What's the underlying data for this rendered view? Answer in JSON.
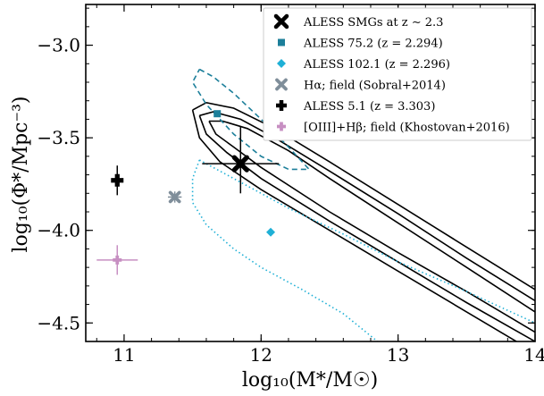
{
  "chart_data": {
    "type": "scatter",
    "xlabel": "log₁₀(M*/M☉)",
    "ylabel": "log₁₀(Φ*/Mpc⁻³)",
    "xlim": [
      10.72,
      14.0
    ],
    "ylim": [
      -4.6,
      -2.78
    ],
    "x_ticks": [
      11,
      12,
      13,
      14
    ],
    "y_ticks": [
      -3.0,
      -3.5,
      -4.0,
      -4.5
    ],
    "x_tick_labels": [
      "11",
      "12",
      "13",
      "14"
    ],
    "y_tick_labels": [
      "−3.0",
      "−3.5",
      "−4.0",
      "−4.5"
    ],
    "legend_position": "upper-right",
    "series": [
      {
        "name": "ALESS SMGs at z ∼ 2.3",
        "marker": "x",
        "color": "#000000",
        "points": [
          {
            "x": 11.85,
            "y": -3.64,
            "xerr": 0.28,
            "yerr": [
              0.2,
              0.16
            ]
          }
        ]
      },
      {
        "name": "ALESS 75.2 (z = 2.294)",
        "marker": "square",
        "color": "#1c7f9a",
        "points": [
          {
            "x": 11.68,
            "y": -3.37
          }
        ]
      },
      {
        "name": "ALESS 102.1 (z = 2.296)",
        "marker": "diamond",
        "color": "#1fb0d6",
        "points": [
          {
            "x": 12.07,
            "y": -4.01
          }
        ]
      },
      {
        "name": "Hα; field (Sobral+2014)",
        "marker": "x",
        "color": "#7f8e9a",
        "points": [
          {
            "x": 11.37,
            "y": -3.82,
            "xerr": 0.05,
            "yerr": 0.03
          }
        ]
      },
      {
        "name": "ALESS 5.1 (z = 3.303)",
        "marker": "plus",
        "color": "#000000",
        "points": [
          {
            "x": 10.95,
            "y": -3.73,
            "xerr": 0.03,
            "yerr": 0.08
          }
        ]
      },
      {
        "name": "[OIII]+Hβ; field (Khostovan+2016)",
        "marker": "plus",
        "color": "#c78fc2",
        "points": [
          {
            "x": 10.95,
            "y": -4.16,
            "xerr": 0.15,
            "yerr": 0.08
          }
        ]
      }
    ],
    "contours": [
      {
        "name": "ALESS SMGs contour 1",
        "style": "solid",
        "color": "#000000",
        "path": [
          [
            11.5,
            -3.35
          ],
          [
            11.6,
            -3.31
          ],
          [
            11.8,
            -3.34
          ],
          [
            12.1,
            -3.45
          ],
          [
            12.5,
            -3.63
          ],
          [
            13.0,
            -3.86
          ],
          [
            13.5,
            -4.09
          ],
          [
            14.0,
            -4.32
          ]
        ]
      },
      {
        "name": "ALESS SMGs contour 1 lower",
        "style": "solid",
        "color": "#000000",
        "path": [
          [
            11.5,
            -3.35
          ],
          [
            11.55,
            -3.5
          ],
          [
            11.7,
            -3.63
          ],
          [
            12.0,
            -3.78
          ],
          [
            12.5,
            -4.0
          ],
          [
            13.0,
            -4.22
          ],
          [
            13.5,
            -4.44
          ],
          [
            14.0,
            -4.66
          ]
        ]
      },
      {
        "name": "ALESS SMGs contour 2",
        "style": "solid",
        "color": "#000000",
        "path": [
          [
            11.55,
            -3.38
          ],
          [
            11.65,
            -3.36
          ],
          [
            11.85,
            -3.4
          ],
          [
            12.1,
            -3.5
          ],
          [
            12.5,
            -3.68
          ],
          [
            13.0,
            -3.91
          ],
          [
            13.5,
            -4.15
          ],
          [
            14.0,
            -4.38
          ]
        ]
      },
      {
        "name": "ALESS SMGs contour 2 lower",
        "style": "solid",
        "color": "#000000",
        "path": [
          [
            11.55,
            -3.38
          ],
          [
            11.6,
            -3.48
          ],
          [
            11.75,
            -3.58
          ],
          [
            12.0,
            -3.72
          ],
          [
            12.5,
            -3.95
          ],
          [
            13.0,
            -4.17
          ],
          [
            13.5,
            -4.39
          ],
          [
            14.0,
            -4.6
          ]
        ]
      },
      {
        "name": "ALESS SMGs contour 3",
        "style": "solid",
        "color": "#000000",
        "path": [
          [
            11.62,
            -3.41
          ],
          [
            11.72,
            -3.41
          ],
          [
            11.9,
            -3.45
          ],
          [
            12.2,
            -3.57
          ],
          [
            12.5,
            -3.72
          ],
          [
            13.0,
            -3.96
          ],
          [
            13.5,
            -4.2
          ],
          [
            14.0,
            -4.44
          ]
        ]
      },
      {
        "name": "ALESS SMGs contour 3 lower",
        "style": "solid",
        "color": "#000000",
        "path": [
          [
            11.62,
            -3.41
          ],
          [
            11.67,
            -3.48
          ],
          [
            11.8,
            -3.55
          ],
          [
            12.0,
            -3.66
          ],
          [
            12.5,
            -3.9
          ],
          [
            13.0,
            -4.12
          ],
          [
            13.5,
            -4.33
          ],
          [
            14.0,
            -4.55
          ]
        ]
      },
      {
        "name": "ALESS 75.2 contour",
        "style": "dashed",
        "color": "#1c7f9a",
        "path": [
          [
            11.55,
            -3.13
          ],
          [
            11.65,
            -3.17
          ],
          [
            11.8,
            -3.26
          ],
          [
            12.0,
            -3.4
          ],
          [
            12.2,
            -3.55
          ],
          [
            12.35,
            -3.67
          ],
          [
            12.2,
            -3.67
          ],
          [
            12.0,
            -3.6
          ],
          [
            11.8,
            -3.48
          ],
          [
            11.6,
            -3.32
          ],
          [
            11.5,
            -3.2
          ],
          [
            11.55,
            -3.13
          ]
        ]
      },
      {
        "name": "ALESS 102.1 contour upper",
        "style": "dotted",
        "color": "#1fb0d6",
        "path": [
          [
            11.55,
            -3.62
          ],
          [
            11.8,
            -3.72
          ],
          [
            12.2,
            -3.88
          ],
          [
            12.6,
            -4.02
          ],
          [
            13.0,
            -4.17
          ],
          [
            13.5,
            -4.33
          ],
          [
            14.0,
            -4.5
          ]
        ]
      },
      {
        "name": "ALESS 102.1 contour lower",
        "style": "dotted",
        "color": "#1fb0d6",
        "path": [
          [
            11.55,
            -3.62
          ],
          [
            11.5,
            -3.72
          ],
          [
            11.5,
            -3.85
          ],
          [
            11.6,
            -3.97
          ],
          [
            11.8,
            -4.1
          ],
          [
            12.0,
            -4.2
          ],
          [
            12.3,
            -4.32
          ],
          [
            12.6,
            -4.45
          ],
          [
            12.85,
            -4.6
          ]
        ]
      }
    ]
  }
}
